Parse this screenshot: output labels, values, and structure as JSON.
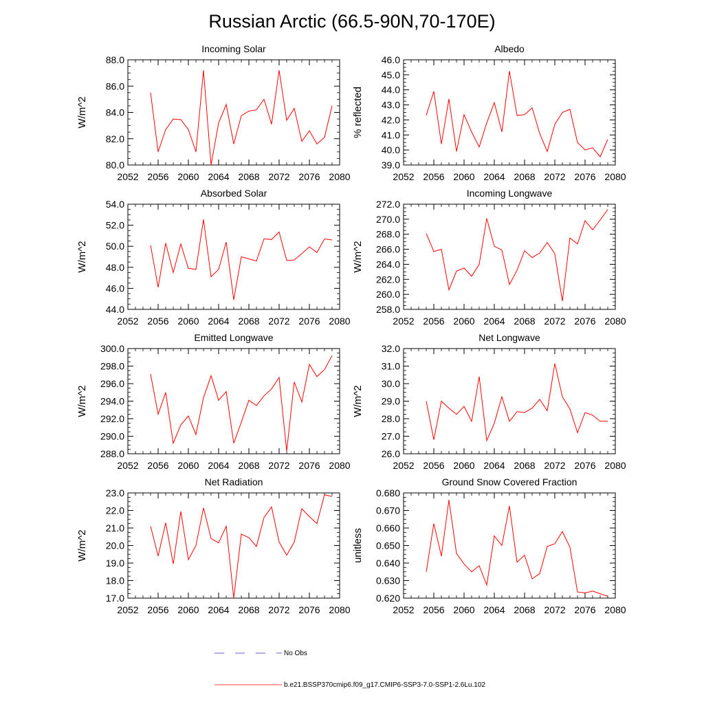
{
  "figure": {
    "title": "Russian Arctic (66.5-90N,70-170E)",
    "legend": [
      {
        "label": "No Obs",
        "color": "#2d2dc8",
        "dash": "dashed"
      },
      {
        "label": "b.e21.BSSP370cmip6.f09_g17.CMIP6-SSP3-7.0-SSP1-2.6Lu.102",
        "color": "#ff0000",
        "dash": "solid"
      }
    ]
  },
  "chart_data": [
    {
      "type": "line",
      "title": "Incoming Solar",
      "ylabel": "W/m^2",
      "xlim": [
        2052,
        2080
      ],
      "ylim": [
        80,
        88
      ],
      "xticks": [
        2052,
        2056,
        2060,
        2064,
        2068,
        2072,
        2076,
        2080
      ],
      "yticks": [
        80,
        82,
        84,
        86,
        88
      ],
      "ytick_labels": [
        "80.0",
        "82.0",
        "84.0",
        "86.0",
        "88.0"
      ],
      "series": [
        {
          "color": "#ff0000",
          "x": [
            2055,
            2056,
            2057,
            2058,
            2059,
            2060,
            2061,
            2062,
            2063,
            2064,
            2065,
            2066,
            2067,
            2068,
            2069,
            2070,
            2071,
            2072,
            2073,
            2074,
            2075,
            2076,
            2077,
            2078,
            2079
          ],
          "values": [
            85.5,
            81.0,
            82.7,
            83.5,
            83.45,
            82.7,
            81.0,
            87.2,
            80.0,
            83.2,
            84.6,
            81.6,
            83.75,
            84.1,
            84.2,
            85.0,
            83.1,
            87.2,
            83.4,
            84.3,
            81.8,
            82.6,
            81.6,
            82.1,
            84.5
          ]
        }
      ]
    },
    {
      "type": "line",
      "title": "Albedo",
      "ylabel": "% reflected",
      "xlim": [
        2052,
        2080
      ],
      "ylim": [
        39,
        46
      ],
      "xticks": [
        2052,
        2056,
        2060,
        2064,
        2068,
        2072,
        2076,
        2080
      ],
      "yticks": [
        39,
        40,
        41,
        42,
        43,
        44,
        45,
        46
      ],
      "ytick_labels": [
        "39.0",
        "40.0",
        "41.0",
        "42.0",
        "43.0",
        "44.0",
        "45.0",
        "46.0"
      ],
      "series": [
        {
          "color": "#ff0000",
          "x": [
            2055,
            2056,
            2057,
            2058,
            2059,
            2060,
            2061,
            2062,
            2063,
            2064,
            2065,
            2066,
            2067,
            2068,
            2069,
            2070,
            2071,
            2072,
            2073,
            2074,
            2075,
            2076,
            2077,
            2078,
            2079
          ],
          "values": [
            42.3,
            43.9,
            40.4,
            43.4,
            39.9,
            42.35,
            41.2,
            40.2,
            41.8,
            43.15,
            41.2,
            45.25,
            42.3,
            42.35,
            42.8,
            41.1,
            39.9,
            41.7,
            42.5,
            42.7,
            40.5,
            40.0,
            40.15,
            39.55,
            40.7
          ]
        }
      ]
    },
    {
      "type": "line",
      "title": "Absorbed Solar",
      "ylabel": "W/m^2",
      "xlim": [
        2052,
        2080
      ],
      "ylim": [
        44,
        54
      ],
      "xticks": [
        2052,
        2056,
        2060,
        2064,
        2068,
        2072,
        2076,
        2080
      ],
      "yticks": [
        44,
        46,
        48,
        50,
        52,
        54
      ],
      "ytick_labels": [
        "44.0",
        "46.0",
        "48.0",
        "50.0",
        "52.0",
        "54.0"
      ],
      "series": [
        {
          "color": "#ff0000",
          "x": [
            2055,
            2056,
            2057,
            2058,
            2059,
            2060,
            2061,
            2062,
            2063,
            2064,
            2065,
            2066,
            2067,
            2068,
            2069,
            2070,
            2071,
            2072,
            2073,
            2074,
            2075,
            2076,
            2077,
            2078,
            2079
          ],
          "values": [
            50.1,
            46.1,
            50.3,
            47.5,
            50.2,
            47.9,
            47.8,
            52.55,
            47.1,
            47.8,
            50.4,
            44.9,
            49.0,
            48.8,
            48.6,
            50.7,
            50.65,
            51.35,
            48.65,
            48.7,
            49.3,
            49.95,
            49.4,
            50.7,
            50.6
          ]
        }
      ]
    },
    {
      "type": "line",
      "title": "Incoming Longwave",
      "ylabel": "W/m^2",
      "xlim": [
        2052,
        2080
      ],
      "ylim": [
        258,
        272
      ],
      "xticks": [
        2052,
        2056,
        2060,
        2064,
        2068,
        2072,
        2076,
        2080
      ],
      "yticks": [
        258,
        260,
        262,
        264,
        266,
        268,
        270,
        272
      ],
      "ytick_labels": [
        "258.0",
        "260.0",
        "262.0",
        "264.0",
        "266.0",
        "268.0",
        "270.0",
        "272.0"
      ],
      "series": [
        {
          "color": "#ff0000",
          "x": [
            2055,
            2056,
            2057,
            2058,
            2059,
            2060,
            2061,
            2062,
            2063,
            2064,
            2065,
            2066,
            2067,
            2068,
            2069,
            2070,
            2071,
            2072,
            2073,
            2074,
            2075,
            2076,
            2077,
            2078,
            2079
          ],
          "values": [
            268.1,
            265.7,
            266.0,
            260.6,
            263.1,
            263.5,
            262.4,
            264.0,
            270.1,
            266.4,
            265.9,
            261.3,
            263.2,
            265.8,
            264.9,
            265.5,
            266.9,
            265.4,
            259.1,
            267.5,
            266.7,
            269.8,
            268.6,
            269.9,
            271.3
          ]
        }
      ]
    },
    {
      "type": "line",
      "title": "Emitted Longwave",
      "ylabel": "W/m^2",
      "xlim": [
        2052,
        2080
      ],
      "ylim": [
        288,
        300
      ],
      "xticks": [
        2052,
        2056,
        2060,
        2064,
        2068,
        2072,
        2076,
        2080
      ],
      "yticks": [
        288,
        290,
        292,
        294,
        296,
        298,
        300
      ],
      "ytick_labels": [
        "288.0",
        "290.0",
        "292.0",
        "294.0",
        "296.0",
        "298.0",
        "300.0"
      ],
      "series": [
        {
          "color": "#ff0000",
          "x": [
            2055,
            2056,
            2057,
            2058,
            2059,
            2060,
            2061,
            2062,
            2063,
            2064,
            2065,
            2066,
            2067,
            2068,
            2069,
            2070,
            2071,
            2072,
            2073,
            2074,
            2075,
            2076,
            2077,
            2078,
            2079
          ],
          "values": [
            297.1,
            292.5,
            295.0,
            289.2,
            291.3,
            292.3,
            290.2,
            294.4,
            296.9,
            294.1,
            295.1,
            289.2,
            291.6,
            294.1,
            293.5,
            294.6,
            295.4,
            296.7,
            288.3,
            296.2,
            293.9,
            298.2,
            296.8,
            297.6,
            299.2
          ]
        }
      ]
    },
    {
      "type": "line",
      "title": "Net Longwave",
      "ylabel": "W/m^2",
      "xlim": [
        2052,
        2080
      ],
      "ylim": [
        26,
        32
      ],
      "xticks": [
        2052,
        2056,
        2060,
        2064,
        2068,
        2072,
        2076,
        2080
      ],
      "yticks": [
        26,
        27,
        28,
        29,
        30,
        31,
        32
      ],
      "ytick_labels": [
        "26.0",
        "27.0",
        "28.0",
        "29.0",
        "30.0",
        "31.0",
        "32.0"
      ],
      "series": [
        {
          "color": "#ff0000",
          "x": [
            2055,
            2056,
            2057,
            2058,
            2059,
            2060,
            2061,
            2062,
            2063,
            2064,
            2065,
            2066,
            2067,
            2068,
            2069,
            2070,
            2071,
            2072,
            2073,
            2074,
            2075,
            2076,
            2077,
            2078,
            2079
          ],
          "values": [
            29.0,
            26.8,
            29.0,
            28.6,
            28.25,
            28.7,
            27.85,
            30.4,
            26.75,
            27.75,
            29.25,
            27.85,
            28.4,
            28.35,
            28.6,
            29.1,
            28.45,
            31.15,
            29.25,
            28.55,
            27.2,
            28.35,
            28.2,
            27.85,
            27.85
          ]
        }
      ]
    },
    {
      "type": "line",
      "title": "Net Radiation",
      "ylabel": "W/m^2",
      "xlim": [
        2052,
        2080
      ],
      "ylim": [
        17,
        23
      ],
      "xticks": [
        2052,
        2056,
        2060,
        2064,
        2068,
        2072,
        2076,
        2080
      ],
      "yticks": [
        17,
        18,
        19,
        20,
        21,
        22,
        23
      ],
      "ytick_labels": [
        "17.0",
        "18.0",
        "19.0",
        "20.0",
        "21.0",
        "22.0",
        "23.0"
      ],
      "series": [
        {
          "color": "#ff0000",
          "x": [
            2055,
            2056,
            2057,
            2058,
            2059,
            2060,
            2061,
            2062,
            2063,
            2064,
            2065,
            2066,
            2067,
            2068,
            2069,
            2070,
            2071,
            2072,
            2073,
            2074,
            2075,
            2076,
            2077,
            2078,
            2079
          ],
          "values": [
            21.1,
            19.4,
            21.3,
            18.95,
            21.95,
            19.2,
            20.0,
            22.15,
            20.4,
            20.15,
            21.1,
            17.0,
            20.65,
            20.45,
            19.95,
            21.6,
            22.2,
            20.2,
            19.45,
            20.2,
            22.1,
            21.65,
            21.25,
            22.9,
            22.8
          ]
        }
      ]
    },
    {
      "type": "line",
      "title": "Ground Snow Covered Fraction",
      "ylabel": "unitless",
      "xlim": [
        2052,
        2080
      ],
      "ylim": [
        0.62,
        0.68
      ],
      "xticks": [
        2052,
        2056,
        2060,
        2064,
        2068,
        2072,
        2076,
        2080
      ],
      "yticks": [
        0.62,
        0.63,
        0.64,
        0.65,
        0.66,
        0.67,
        0.68
      ],
      "ytick_labels": [
        "0.620",
        "0.630",
        "0.640",
        "0.650",
        "0.660",
        "0.670",
        "0.680"
      ],
      "series": [
        {
          "color": "#ff0000",
          "x": [
            2055,
            2056,
            2057,
            2058,
            2059,
            2060,
            2061,
            2062,
            2063,
            2064,
            2065,
            2066,
            2067,
            2068,
            2069,
            2070,
            2071,
            2072,
            2073,
            2074,
            2075,
            2076,
            2077,
            2078,
            2079
          ],
          "values": [
            0.635,
            0.6625,
            0.644,
            0.676,
            0.6455,
            0.6395,
            0.635,
            0.6385,
            0.6275,
            0.6555,
            0.65,
            0.6725,
            0.6405,
            0.6445,
            0.631,
            0.634,
            0.6495,
            0.651,
            0.658,
            0.649,
            0.6235,
            0.623,
            0.624,
            0.6225,
            0.621
          ]
        }
      ]
    }
  ]
}
